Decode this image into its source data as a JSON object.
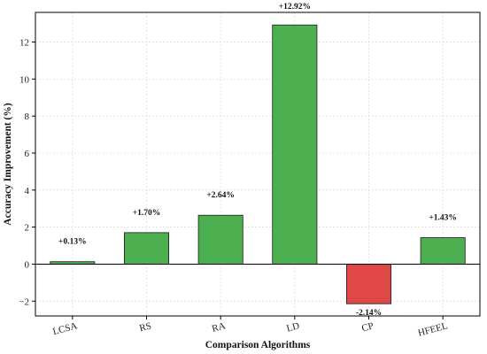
{
  "chart_data": {
    "type": "bar",
    "title": "",
    "xlabel": "Comparison Algorithms",
    "ylabel": "Accuracy Improvement (%)",
    "categories": [
      "LCSA",
      "RS",
      "RA",
      "LD",
      "CP",
      "HFEEL"
    ],
    "values": [
      0.13,
      1.7,
      2.64,
      12.92,
      -2.14,
      1.43
    ],
    "data_labels": [
      "+0.13%",
      "+1.70%",
      "+2.64%",
      "+12.92%",
      "-2.14%",
      "+1.43%"
    ],
    "ylim": [
      -2.8,
      13.6
    ],
    "yticks": [
      -2,
      0,
      2,
      4,
      6,
      8,
      10,
      12
    ],
    "ytick_labels": [
      "−2",
      "0",
      "2",
      "4",
      "6",
      "8",
      "10",
      "12"
    ],
    "grid": true,
    "colors": {
      "positive": "#4caf50",
      "negative": "#e04848",
      "edge": "#1a1a1a",
      "grid": "#d9d9d9",
      "zero_line": "#000000"
    }
  }
}
